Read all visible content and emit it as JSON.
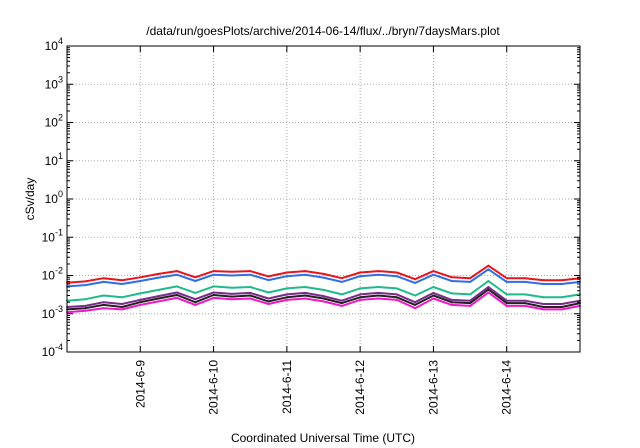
{
  "chart_data": {
    "type": "line",
    "title": "/data/run/goesPlots/archive/2014-06-14/flux/../bryn/7daysMars.plot",
    "xlabel": "Coordinated Universal Time (UTC)",
    "ylabel": "cSv/day",
    "yscale": "log",
    "ylim": [
      0.0001,
      10000
    ],
    "xlim": [
      "2014-06-08 00:00",
      "2014-06-15 00:00"
    ],
    "grid": true,
    "x_ticks": [
      "2014-6-9",
      "2014-6-10",
      "2014-6-11",
      "2014-6-12",
      "2014-6-13",
      "2014-6-14"
    ],
    "y_ticks": [
      {
        "base": "10",
        "exp": "-4"
      },
      {
        "base": "10",
        "exp": "-3"
      },
      {
        "base": "10",
        "exp": "-2"
      },
      {
        "base": "10",
        "exp": "-1"
      },
      {
        "base": "10",
        "exp": "0"
      },
      {
        "base": "10",
        "exp": "1"
      },
      {
        "base": "10",
        "exp": "2"
      },
      {
        "base": "10",
        "exp": "3"
      },
      {
        "base": "10",
        "exp": "4"
      }
    ],
    "x": [
      "2014-06-08 00:00",
      "2014-06-08 06:00",
      "2014-06-08 12:00",
      "2014-06-08 18:00",
      "2014-06-09 00:00",
      "2014-06-09 06:00",
      "2014-06-09 12:00",
      "2014-06-09 18:00",
      "2014-06-10 00:00",
      "2014-06-10 06:00",
      "2014-06-10 12:00",
      "2014-06-10 18:00",
      "2014-06-11 00:00",
      "2014-06-11 06:00",
      "2014-06-11 12:00",
      "2014-06-11 18:00",
      "2014-06-12 00:00",
      "2014-06-12 06:00",
      "2014-06-12 12:00",
      "2014-06-12 18:00",
      "2014-06-13 00:00",
      "2014-06-13 06:00",
      "2014-06-13 12:00",
      "2014-06-13 18:00",
      "2014-06-14 00:00",
      "2014-06-14 06:00",
      "2014-06-14 12:00",
      "2014-06-14 18:00",
      "2014-06-15 00:00"
    ],
    "series": [
      {
        "color": "#e8141b",
        "values": [
          0.0065,
          0.007,
          0.0085,
          0.0075,
          0.009,
          0.011,
          0.013,
          0.009,
          0.013,
          0.0125,
          0.013,
          0.0095,
          0.012,
          0.013,
          0.011,
          0.0085,
          0.012,
          0.013,
          0.012,
          0.008,
          0.013,
          0.009,
          0.0085,
          0.018,
          0.0085,
          0.0085,
          0.0075,
          0.0075,
          0.0085
        ]
      },
      {
        "color": "#2e6fe6",
        "values": [
          0.0052,
          0.0056,
          0.0068,
          0.006,
          0.0072,
          0.0088,
          0.0105,
          0.0072,
          0.0105,
          0.01,
          0.0105,
          0.0076,
          0.0096,
          0.0105,
          0.0088,
          0.0068,
          0.0096,
          0.0105,
          0.0096,
          0.0064,
          0.0105,
          0.0072,
          0.0068,
          0.0145,
          0.0068,
          0.0068,
          0.006,
          0.006,
          0.0068
        ]
      },
      {
        "color": "#1fba8a",
        "values": [
          0.0022,
          0.0024,
          0.003,
          0.0027,
          0.0034,
          0.0042,
          0.0052,
          0.0035,
          0.0052,
          0.0048,
          0.005,
          0.0036,
          0.0046,
          0.005,
          0.0042,
          0.0032,
          0.0046,
          0.005,
          0.0046,
          0.003,
          0.005,
          0.0034,
          0.0032,
          0.0072,
          0.0032,
          0.0032,
          0.0027,
          0.0027,
          0.0032
        ]
      },
      {
        "color": "#7a2a8a",
        "values": [
          0.0015,
          0.0016,
          0.002,
          0.0018,
          0.0023,
          0.0029,
          0.0036,
          0.0024,
          0.0036,
          0.0033,
          0.0035,
          0.0025,
          0.0032,
          0.0035,
          0.0029,
          0.0022,
          0.0032,
          0.0035,
          0.0032,
          0.002,
          0.0035,
          0.0023,
          0.0022,
          0.005,
          0.0022,
          0.0022,
          0.0018,
          0.0018,
          0.0022
        ]
      },
      {
        "color": "#222222",
        "values": [
          0.0013,
          0.0014,
          0.0017,
          0.0015,
          0.002,
          0.0025,
          0.0031,
          0.002,
          0.0031,
          0.0028,
          0.003,
          0.0021,
          0.0027,
          0.003,
          0.0025,
          0.0019,
          0.0027,
          0.003,
          0.0027,
          0.0017,
          0.003,
          0.002,
          0.0019,
          0.0043,
          0.0019,
          0.0019,
          0.0015,
          0.0015,
          0.0019
        ]
      },
      {
        "color": "#ef18c8",
        "values": [
          0.0011,
          0.0012,
          0.0014,
          0.0013,
          0.0017,
          0.0021,
          0.0026,
          0.0017,
          0.0026,
          0.0024,
          0.0025,
          0.0018,
          0.0023,
          0.0025,
          0.0021,
          0.0016,
          0.0023,
          0.0025,
          0.0023,
          0.0014,
          0.0025,
          0.0017,
          0.0016,
          0.0036,
          0.0016,
          0.0016,
          0.0013,
          0.0013,
          0.0016
        ]
      }
    ]
  }
}
